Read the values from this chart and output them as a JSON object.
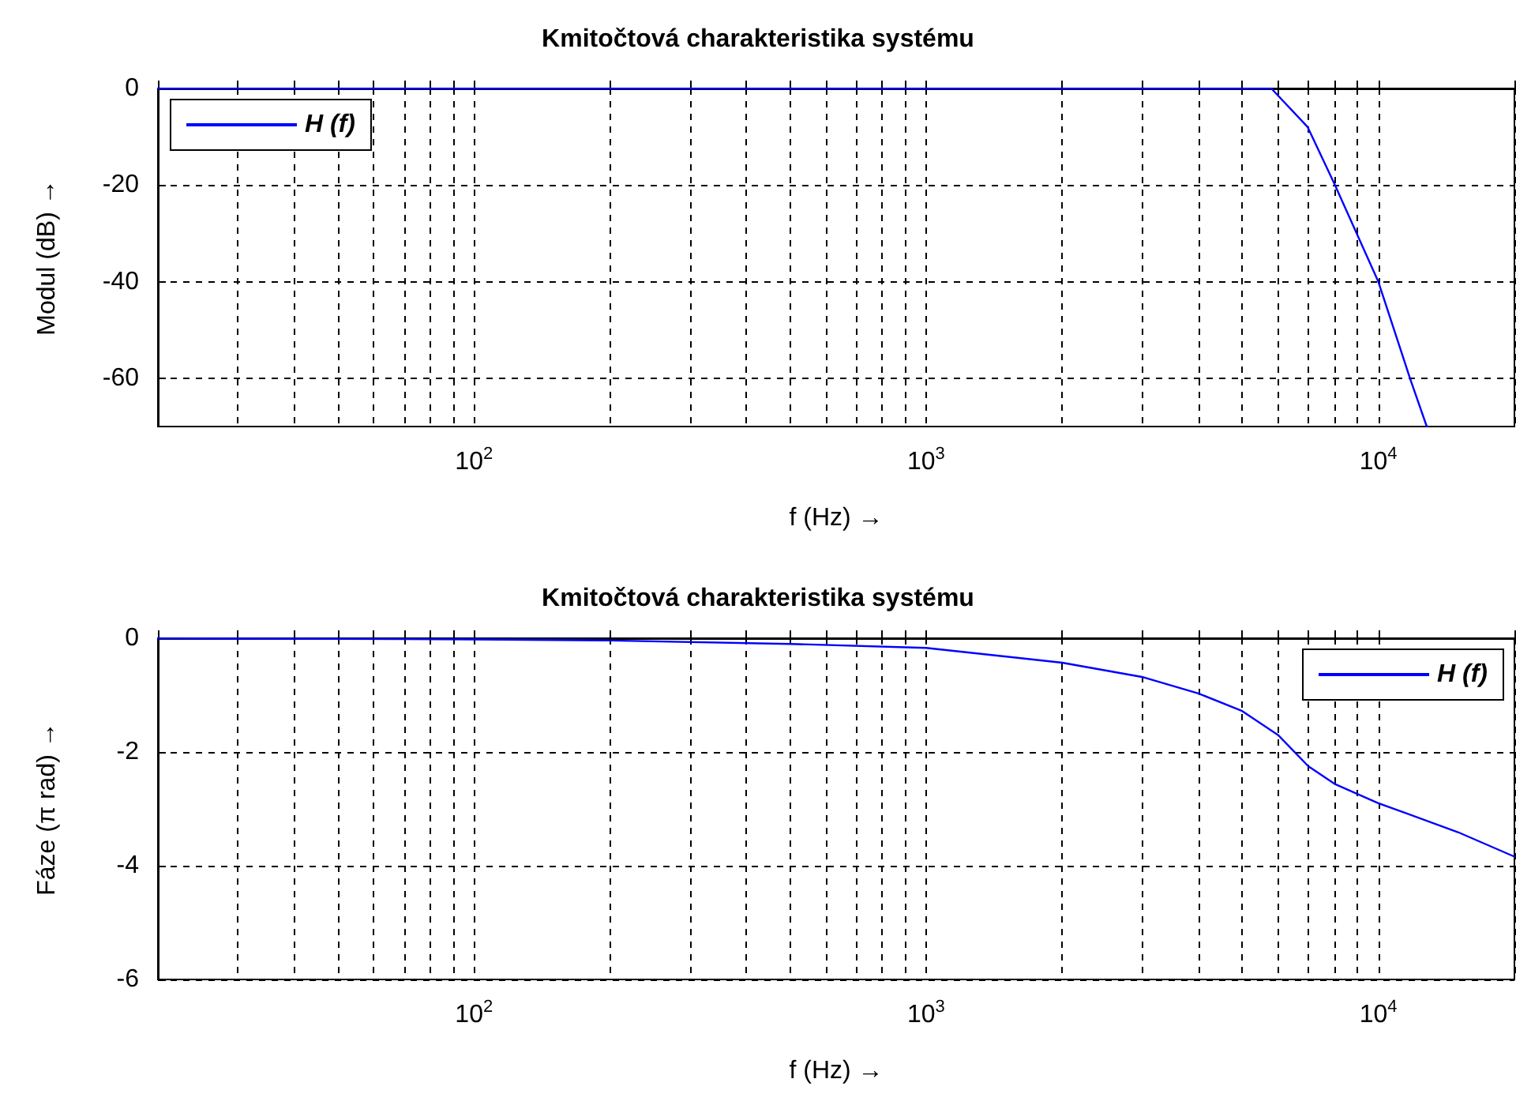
{
  "chart_data": [
    {
      "type": "line",
      "title": "Kmitočtová charakteristika systému",
      "xlabel": "f (Hz) →",
      "ylabel": "Modul (dB) →",
      "x": [
        20,
        100,
        1000,
        5000,
        5800,
        6980,
        8020,
        10000,
        11750,
        12800
      ],
      "series": [
        {
          "name": "H (f)",
          "color": "#0000ff",
          "values": [
            0,
            0,
            0,
            0,
            0,
            -8,
            -20,
            -40,
            -60,
            -70
          ]
        }
      ],
      "log": "x",
      "xlim": [
        20,
        20000
      ],
      "xticks": [
        {
          "value": 20,
          "label": null
        },
        {
          "value": 30,
          "label": null
        },
        {
          "value": 40,
          "label": null
        },
        {
          "value": 50,
          "label": null
        },
        {
          "value": 60,
          "label": null
        },
        {
          "value": 70,
          "label": null
        },
        {
          "value": 80,
          "label": null
        },
        {
          "value": 90,
          "label": null
        },
        {
          "value": 100,
          "label": "10$^{2}$"
        },
        {
          "value": 200,
          "label": null
        },
        {
          "value": 300,
          "label": null
        },
        {
          "value": 400,
          "label": null
        },
        {
          "value": 500,
          "label": null
        },
        {
          "value": 600,
          "label": null
        },
        {
          "value": 700,
          "label": null
        },
        {
          "value": 800,
          "label": null
        },
        {
          "value": 900,
          "label": null
        },
        {
          "value": 1000,
          "label": "10$^{3}$"
        },
        {
          "value": 2000,
          "label": null
        },
        {
          "value": 3000,
          "label": null
        },
        {
          "value": 4000,
          "label": null
        },
        {
          "value": 5000,
          "label": null
        },
        {
          "value": 6000,
          "label": null
        },
        {
          "value": 7000,
          "label": null
        },
        {
          "value": 8000,
          "label": null
        },
        {
          "value": 9000,
          "label": null
        },
        {
          "value": 10000,
          "label": "10$^{4}$"
        },
        {
          "value": 20000,
          "label": null
        }
      ],
      "ylim": [
        -70,
        0
      ],
      "yticks": [
        -60,
        -40,
        -20,
        0
      ],
      "grid": true,
      "legend": "top left",
      "line_style": "solid",
      "marker": "none"
    },
    {
      "type": "line",
      "title": "Kmitočtová charakteristika systému",
      "xlabel": "f (Hz) →",
      "ylabel": "Fáze (π rad) →",
      "x": [
        20,
        100,
        200,
        500,
        1000,
        2000,
        3000,
        4000,
        5000,
        6000,
        7000,
        8000,
        10000,
        15000,
        20000
      ],
      "series": [
        {
          "name": "H (f)",
          "color": "#0000ff",
          "values": [
            0,
            -0.02,
            -0.04,
            -0.1,
            -0.17,
            -0.43,
            -0.68,
            -0.97,
            -1.28,
            -1.7,
            -2.25,
            -2.56,
            -2.9,
            -3.41,
            -3.84
          ]
        }
      ],
      "log": "x",
      "xlim": [
        20,
        20000
      ],
      "xticks": [
        {
          "value": 20,
          "label": null
        },
        {
          "value": 30,
          "label": null
        },
        {
          "value": 40,
          "label": null
        },
        {
          "value": 50,
          "label": null
        },
        {
          "value": 60,
          "label": null
        },
        {
          "value": 70,
          "label": null
        },
        {
          "value": 80,
          "label": null
        },
        {
          "value": 90,
          "label": null
        },
        {
          "value": 100,
          "label": "10$^{2}$"
        },
        {
          "value": 200,
          "label": null
        },
        {
          "value": 300,
          "label": null
        },
        {
          "value": 400,
          "label": null
        },
        {
          "value": 500,
          "label": null
        },
        {
          "value": 600,
          "label": null
        },
        {
          "value": 700,
          "label": null
        },
        {
          "value": 800,
          "label": null
        },
        {
          "value": 900,
          "label": null
        },
        {
          "value": 1000,
          "label": "10$^{3}$"
        },
        {
          "value": 2000,
          "label": null
        },
        {
          "value": 3000,
          "label": null
        },
        {
          "value": 4000,
          "label": null
        },
        {
          "value": 5000,
          "label": null
        },
        {
          "value": 6000,
          "label": null
        },
        {
          "value": 7000,
          "label": null
        },
        {
          "value": 8000,
          "label": null
        },
        {
          "value": 9000,
          "label": null
        },
        {
          "value": 10000,
          "label": "10$^{4}$"
        },
        {
          "value": 20000,
          "label": null
        }
      ],
      "ylim": [
        -6,
        0
      ],
      "yticks": [
        -6,
        -4,
        -2,
        0
      ],
      "grid": true,
      "legend": "top right",
      "line_style": "solid",
      "marker": "none"
    }
  ]
}
